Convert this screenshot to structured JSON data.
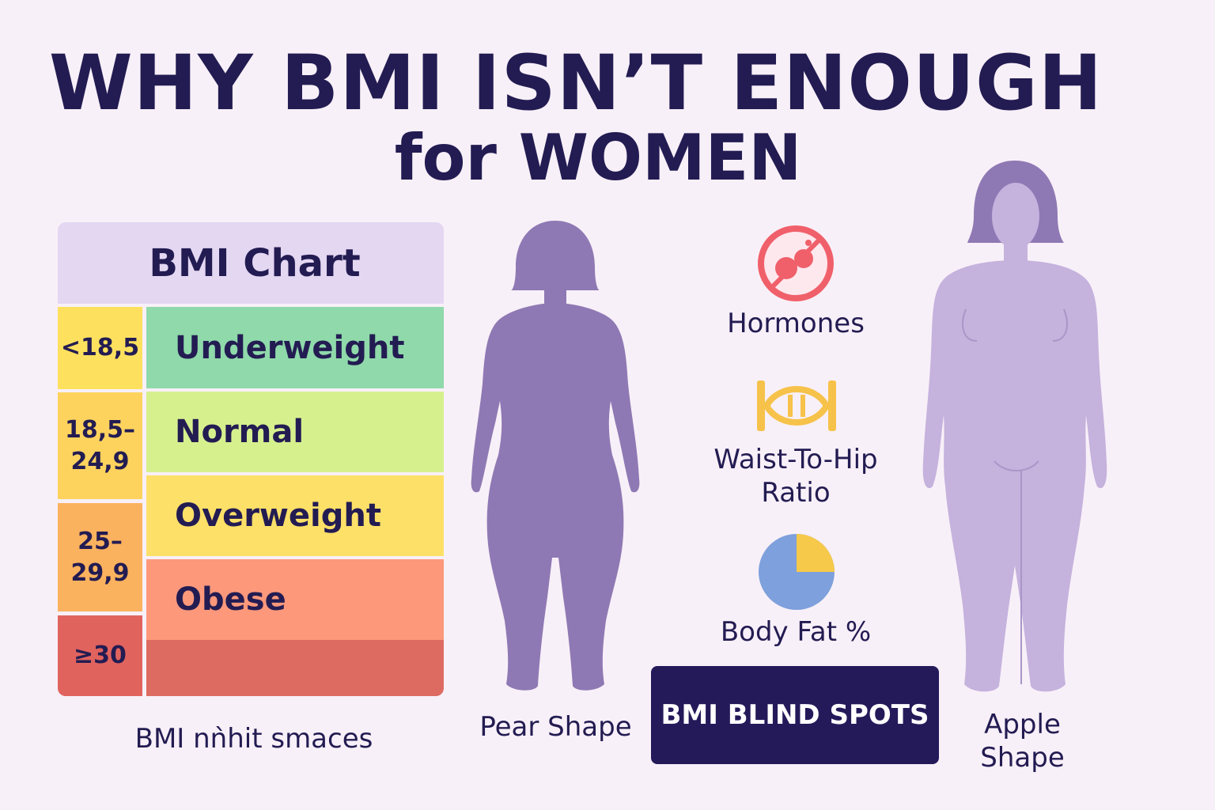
{
  "title": {
    "line1": "WHY BMI ISN’T ENOUGH",
    "line2": "for WOMEN"
  },
  "bmi_chart": {
    "title": "BMI Chart",
    "rows": [
      {
        "range": "<18,5",
        "category": "Underweight",
        "range_color": "#fde15e",
        "category_color": "#8fd9aa"
      },
      {
        "range": "18,5–\n24,9",
        "category": "Normal",
        "range_color": "#fdd35e",
        "category_color": "#d7f08e"
      },
      {
        "range": "25–\n29,9",
        "category": "Overweight",
        "range_color": "#fbb25e",
        "category_color": "#fde068"
      },
      {
        "range": "",
        "category": "Obese",
        "range_color": "#fbb25e",
        "category_color": "#fd987b"
      },
      {
        "range": "≥30",
        "category": "",
        "range_color": "#e1635e",
        "category_color": "#dd6b62"
      }
    ],
    "footer": "BMI nǹhit smaces"
  },
  "figures": {
    "pear_label": "Pear Shape",
    "apple_label": "Apple Shape",
    "pear_color": "#8f79b4",
    "apple_color": "#c5b2dd"
  },
  "factors": [
    {
      "icon": "no-hormones-icon",
      "label": "Hormones"
    },
    {
      "icon": "dna-ratio-icon",
      "label": "Waist-To-Hip\nRatio"
    },
    {
      "icon": "pie-chart-icon",
      "label": "Body Fat %"
    }
  ],
  "badge": {
    "label": "BMI BLIND SPOTS",
    "color": "#241a5a"
  },
  "colors": {
    "text": "#231c52",
    "background": "#f8f0f8"
  }
}
